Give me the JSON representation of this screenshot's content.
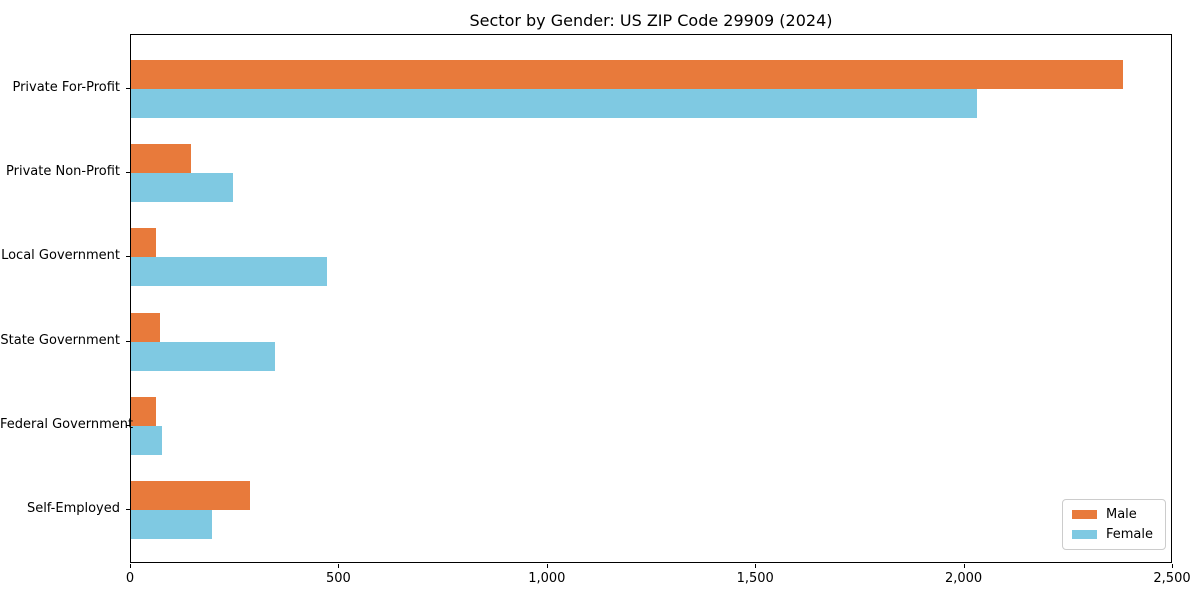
{
  "title": "Sector by Gender: US ZIP Code 29909 (2024)",
  "chart_data": {
    "type": "bar",
    "orientation": "horizontal",
    "title": "Sector by Gender: US ZIP Code 29909 (2024)",
    "categories": [
      "Private For-Profit",
      "Private Non-Profit",
      "Local Government",
      "State Government",
      "Federal Government",
      "Self-Employed"
    ],
    "series": [
      {
        "name": "Male",
        "color": "#e87a3b",
        "values": [
          2380,
          145,
          60,
          70,
          60,
          285
        ]
      },
      {
        "name": "Female",
        "color": "#7fc9e2",
        "values": [
          2030,
          245,
          470,
          345,
          75,
          195
        ]
      }
    ],
    "xlabel": "",
    "ylabel": "",
    "xlim": [
      0,
      2500
    ],
    "xticks": [
      0,
      500,
      1000,
      1500,
      2000,
      2500
    ],
    "xtick_labels": [
      "0",
      "500",
      "1,000",
      "1,500",
      "2,000",
      "2,500"
    ],
    "grid": false,
    "legend_position": "lower right",
    "colors": {
      "background": "#ffffff",
      "spine": "#000000",
      "text": "#000000",
      "legend_border": "#cccccc"
    }
  }
}
